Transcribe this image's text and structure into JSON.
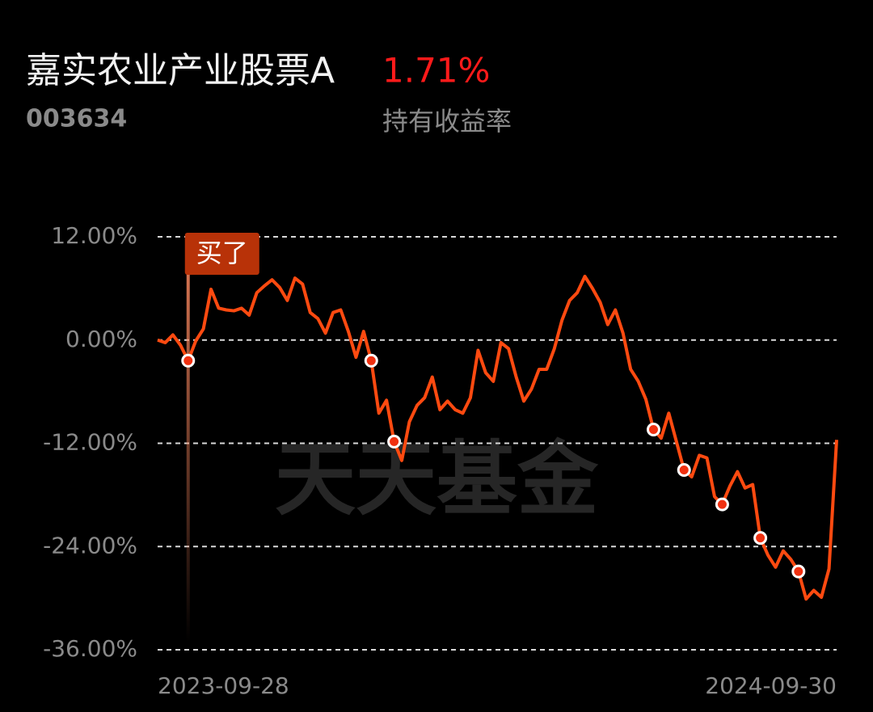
{
  "chart_data": {
    "type": "line",
    "title": "嘉实农业产业股票A",
    "subtitle": "003634",
    "return_value": "1.71%",
    "return_caption": "持有收益率",
    "watermark": "天天基金",
    "buy_label": "买了",
    "buy_index": 4,
    "markers": [
      4,
      28,
      31,
      65,
      69,
      74,
      79,
      84
    ],
    "categories": [
      "2023-09-28",
      null,
      null,
      null,
      null,
      null,
      null,
      null,
      null,
      null,
      null,
      null,
      null,
      null,
      null,
      null,
      null,
      null,
      null,
      null,
      null,
      null,
      null,
      null,
      null,
      null,
      null,
      null,
      null,
      null,
      null,
      null,
      null,
      null,
      null,
      null,
      null,
      null,
      null,
      null,
      null,
      null,
      null,
      null,
      null,
      null,
      null,
      null,
      null,
      null,
      null,
      null,
      null,
      null,
      null,
      null,
      null,
      null,
      null,
      null,
      null,
      null,
      null,
      null,
      null,
      null,
      null,
      null,
      null,
      null,
      null,
      null,
      null,
      null,
      null,
      null,
      null,
      null,
      null,
      null,
      null,
      null,
      null,
      null,
      null,
      null,
      null,
      null,
      null,
      "2024-09-30"
    ],
    "series": [
      {
        "color": "#ff4a10",
        "values": [
          0,
          -0.3,
          0.6,
          -0.6,
          -2.4,
          -0.1,
          1.3,
          5.9,
          3.7,
          3.5,
          3.4,
          3.7,
          2.9,
          5.5,
          6.3,
          7.0,
          6.1,
          4.6,
          7.2,
          6.5,
          3.2,
          2.5,
          0.8,
          3.2,
          3.5,
          1.0,
          -2.0,
          1.0,
          -2.4,
          -8.5,
          -7.0,
          -11.8,
          -14.0,
          -9.5,
          -7.6,
          -6.7,
          -4.3,
          -8.1,
          -7.1,
          -8.1,
          -8.5,
          -6.7,
          -1.2,
          -3.8,
          -4.8,
          -0.3,
          -1.0,
          -4.3,
          -7.1,
          -5.7,
          -3.4,
          -3.4,
          -1.0,
          2.3,
          4.6,
          5.5,
          7.4,
          6.0,
          4.4,
          1.8,
          3.5,
          0.8,
          -3.4,
          -4.8,
          -6.9,
          -10.4,
          -11.4,
          -8.5,
          -11.8,
          -15.1,
          -15.9,
          -13.4,
          -13.7,
          -18.2,
          -19.1,
          -17.0,
          -15.3,
          -17.2,
          -16.8,
          -23.0,
          -25.0,
          -26.4,
          -24.5,
          -25.5,
          -26.9,
          -30.1,
          -29.1,
          -29.9,
          -26.6,
          -11.6
        ]
      }
    ],
    "ylim": [
      -36,
      12
    ],
    "yticks": [
      {
        "value": 12,
        "label": "12.00%"
      },
      {
        "value": 0,
        "label": "0.00%"
      },
      {
        "value": -12,
        "label": "-12.00%"
      },
      {
        "value": -24,
        "label": "-24.00%"
      },
      {
        "value": -36,
        "label": "-36.00%"
      }
    ],
    "grid": true
  }
}
